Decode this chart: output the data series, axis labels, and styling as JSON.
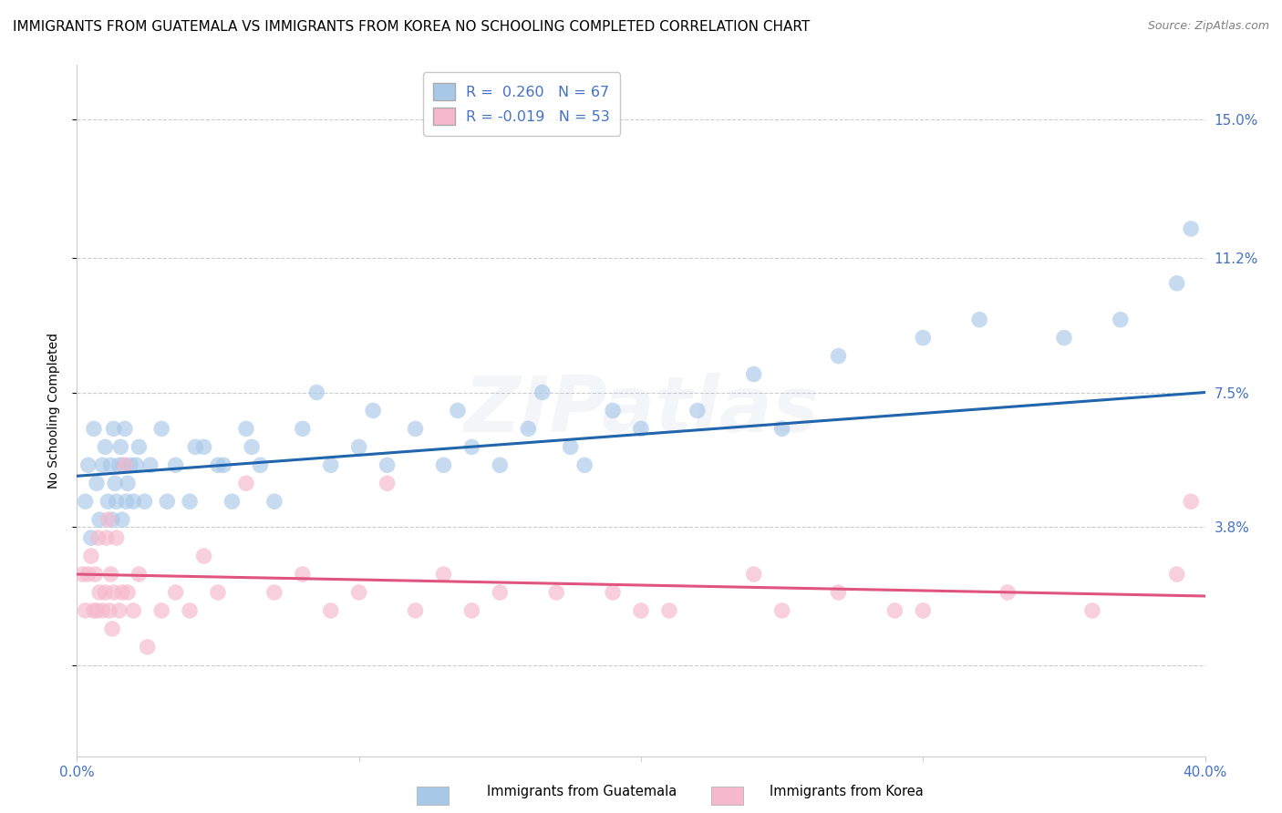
{
  "title": "IMMIGRANTS FROM GUATEMALA VS IMMIGRANTS FROM KOREA NO SCHOOLING COMPLETED CORRELATION CHART",
  "source": "Source: ZipAtlas.com",
  "ylabel": "No Schooling Completed",
  "ytick_vals": [
    0.0,
    3.8,
    7.5,
    11.2,
    15.0
  ],
  "ytick_labels_right": [
    "",
    "3.8%",
    "7.5%",
    "11.2%",
    "15.0%"
  ],
  "xlim": [
    0.0,
    40.0
  ],
  "ylim": [
    -2.5,
    16.5
  ],
  "legend1_label": "R =  0.260   N = 67",
  "legend2_label": "R = -0.019   N = 53",
  "color_blue": "#a8c8e8",
  "color_pink": "#f5b8cc",
  "color_line_blue": "#2166ac",
  "color_line_pink": "#e05580",
  "watermark": "ZIPatlas",
  "label_guatemala": "Immigrants from Guatemala",
  "label_korea": "Immigrants from Korea",
  "blue_x": [
    0.3,
    0.4,
    0.5,
    0.6,
    0.7,
    0.8,
    0.9,
    1.0,
    1.1,
    1.2,
    1.25,
    1.3,
    1.35,
    1.4,
    1.5,
    1.55,
    1.6,
    1.65,
    1.7,
    1.75,
    1.8,
    1.9,
    2.0,
    2.1,
    2.2,
    2.4,
    2.6,
    3.0,
    3.5,
    4.0,
    4.5,
    5.0,
    5.5,
    6.0,
    6.5,
    7.0,
    8.0,
    9.0,
    10.0,
    11.0,
    12.0,
    13.0,
    14.0,
    15.0,
    16.0,
    17.5,
    18.0,
    20.0,
    22.0,
    25.0,
    27.0,
    30.0,
    32.0,
    35.0,
    37.0,
    39.0,
    39.5,
    3.2,
    4.2,
    5.2,
    6.2,
    8.5,
    10.5,
    13.5,
    16.5,
    19.0,
    24.0
  ],
  "blue_y": [
    4.5,
    5.5,
    3.5,
    6.5,
    5.0,
    4.0,
    5.5,
    6.0,
    4.5,
    5.5,
    4.0,
    6.5,
    5.0,
    4.5,
    5.5,
    6.0,
    4.0,
    5.5,
    6.5,
    4.5,
    5.0,
    5.5,
    4.5,
    5.5,
    6.0,
    4.5,
    5.5,
    6.5,
    5.5,
    4.5,
    6.0,
    5.5,
    4.5,
    6.5,
    5.5,
    4.5,
    6.5,
    5.5,
    6.0,
    5.5,
    6.5,
    5.5,
    6.0,
    5.5,
    6.5,
    6.0,
    5.5,
    6.5,
    7.0,
    6.5,
    8.5,
    9.0,
    9.5,
    9.0,
    9.5,
    10.5,
    12.0,
    4.5,
    6.0,
    5.5,
    6.0,
    7.5,
    7.0,
    7.0,
    7.5,
    7.0,
    8.0
  ],
  "pink_x": [
    0.2,
    0.3,
    0.4,
    0.5,
    0.6,
    0.65,
    0.7,
    0.75,
    0.8,
    0.9,
    1.0,
    1.05,
    1.1,
    1.15,
    1.2,
    1.25,
    1.3,
    1.4,
    1.5,
    1.6,
    1.7,
    1.8,
    2.0,
    2.2,
    2.5,
    3.0,
    3.5,
    4.0,
    4.5,
    5.0,
    6.0,
    7.0,
    8.0,
    9.0,
    10.0,
    11.0,
    12.0,
    13.0,
    14.0,
    15.0,
    17.0,
    19.0,
    21.0,
    24.0,
    27.0,
    30.0,
    33.0,
    36.0,
    39.0,
    20.0,
    25.0,
    29.0,
    39.5
  ],
  "pink_y": [
    2.5,
    1.5,
    2.5,
    3.0,
    1.5,
    2.5,
    1.5,
    3.5,
    2.0,
    1.5,
    2.0,
    3.5,
    4.0,
    1.5,
    2.5,
    1.0,
    2.0,
    3.5,
    1.5,
    2.0,
    5.5,
    2.0,
    1.5,
    2.5,
    0.5,
    1.5,
    2.0,
    1.5,
    3.0,
    2.0,
    5.0,
    2.0,
    2.5,
    1.5,
    2.0,
    5.0,
    1.5,
    2.5,
    1.5,
    2.0,
    2.0,
    2.0,
    1.5,
    2.5,
    2.0,
    1.5,
    2.0,
    1.5,
    2.5,
    1.5,
    1.5,
    1.5,
    4.5
  ],
  "blue_trend_x": [
    0.0,
    40.0
  ],
  "blue_trend_y": [
    5.2,
    7.5
  ],
  "pink_trend_x": [
    0.0,
    40.0
  ],
  "pink_trend_y": [
    2.5,
    1.9
  ],
  "title_fontsize": 11,
  "source_fontsize": 9,
  "label_fontsize": 10,
  "tick_fontsize": 11,
  "watermark_alpha": 0.13,
  "marker_size": 160,
  "marker_alpha": 0.65
}
